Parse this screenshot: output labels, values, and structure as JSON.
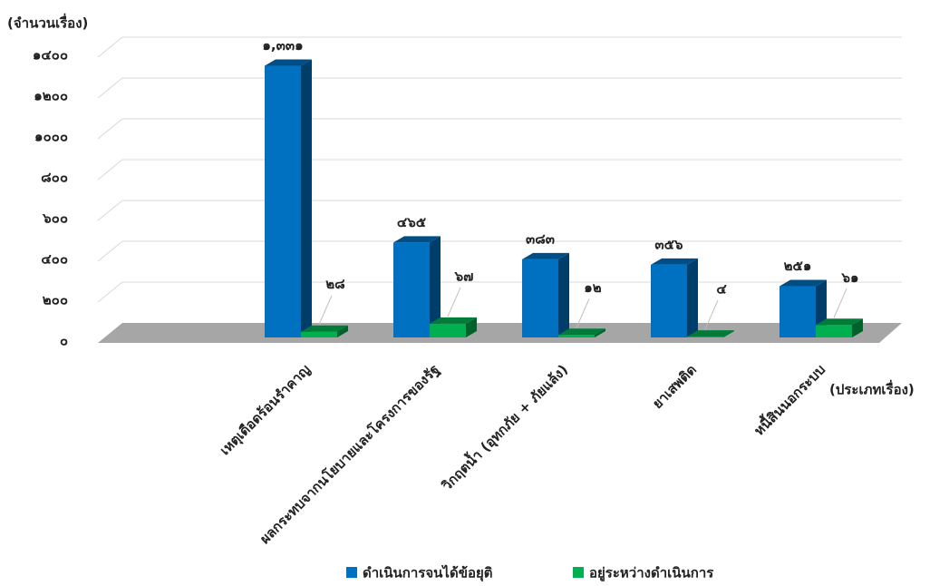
{
  "chart_data": {
    "type": "bar3d",
    "y_label": "(จำนวนเรื่อง)",
    "x_label": "(ประเภทเรื่อง)",
    "categories": [
      "เหตุเดือดร้อนรำคาญ",
      "ผลกระทบจากนโยบายและโครงการของรัฐ",
      "วิกฤตน้ำ (อุทกภัย + ภัยแล้ง)",
      "ยาเสพติด",
      "หนี้สินนอกระบบ"
    ],
    "series": [
      {
        "name": "ดำเนินการจนได้ข้อยุติ",
        "color": "#0070c0",
        "values": [
          1331,
          465,
          383,
          356,
          251
        ],
        "value_labels": [
          "๑,๓๓๑",
          "๔๖๕",
          "๓๘๓",
          "๓๕๖",
          "๒๕๑"
        ]
      },
      {
        "name": "อยู่ระหว่างดำเนินการ",
        "color": "#00b050",
        "values": [
          28,
          67,
          12,
          4,
          61
        ],
        "value_labels": [
          "๒๘",
          "๖๗",
          "๑๒",
          "๔",
          "๖๑"
        ]
      }
    ],
    "ylim": [
      0,
      1400
    ],
    "yticks": [
      {
        "value": 0,
        "label": "๐"
      },
      {
        "value": 200,
        "label": "๒๐๐"
      },
      {
        "value": 400,
        "label": "๔๐๐"
      },
      {
        "value": 600,
        "label": "๖๐๐"
      },
      {
        "value": 800,
        "label": "๘๐๐"
      },
      {
        "value": 1000,
        "label": "๑๐๐๐"
      },
      {
        "value": 1200,
        "label": "๑๒๐๐"
      },
      {
        "value": 1400,
        "label": "๑๔๐๐"
      }
    ],
    "grid": true
  }
}
